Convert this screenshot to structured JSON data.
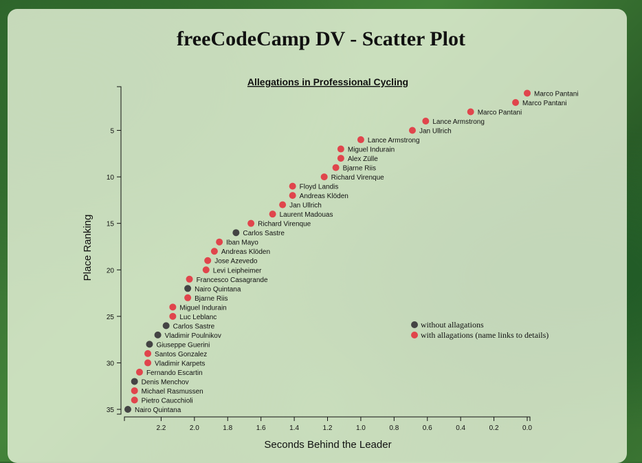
{
  "header": {
    "page_title": "freeCodeCamp DV - Scatter Plot"
  },
  "colors": {
    "doping": "#e0454c",
    "clean": "#444444"
  },
  "chart_data": {
    "type": "scatter",
    "title": "Allegations in Professional Cycling",
    "xlabel": "Seconds Behind the Leader",
    "ylabel": "Place Ranking",
    "xlim": [
      0,
      2.4
    ],
    "ylim": [
      1,
      35
    ],
    "x_ticks": [
      2.2,
      2.0,
      1.8,
      1.6,
      1.4,
      1.2,
      1.0,
      0.8,
      0.6,
      0.4,
      0.2,
      0.0
    ],
    "y_ticks": [
      5,
      10,
      15,
      20,
      25,
      30,
      35
    ],
    "x_reversed": true,
    "legend": [
      {
        "label": "without allagations",
        "allegation": false
      },
      {
        "label": "with allagations (name links to details)",
        "allegation": true
      }
    ],
    "points": [
      {
        "place": 1,
        "x": 0.0,
        "name": "Marco Pantani",
        "allegation": true
      },
      {
        "place": 2,
        "x": 0.07,
        "name": "Marco Pantani",
        "allegation": true
      },
      {
        "place": 3,
        "x": 0.34,
        "name": "Marco Pantani",
        "allegation": true
      },
      {
        "place": 4,
        "x": 0.61,
        "name": "Lance Armstrong",
        "allegation": true
      },
      {
        "place": 5,
        "x": 0.69,
        "name": "Jan Ullrich",
        "allegation": true
      },
      {
        "place": 6,
        "x": 1.0,
        "name": "Lance Armstrong",
        "allegation": true
      },
      {
        "place": 7,
        "x": 1.12,
        "name": "Miguel Indurain",
        "allegation": true
      },
      {
        "place": 8,
        "x": 1.12,
        "name": "Alex Zülle",
        "allegation": true
      },
      {
        "place": 9,
        "x": 1.15,
        "name": "Bjarne Riis",
        "allegation": true
      },
      {
        "place": 10,
        "x": 1.22,
        "name": "Richard Virenque",
        "allegation": true
      },
      {
        "place": 11,
        "x": 1.41,
        "name": "Floyd Landis",
        "allegation": true
      },
      {
        "place": 12,
        "x": 1.41,
        "name": "Andreas Klöden",
        "allegation": true
      },
      {
        "place": 13,
        "x": 1.47,
        "name": "Jan Ullrich",
        "allegation": true
      },
      {
        "place": 14,
        "x": 1.53,
        "name": "Laurent Madouas",
        "allegation": true
      },
      {
        "place": 15,
        "x": 1.66,
        "name": "Richard Virenque",
        "allegation": true
      },
      {
        "place": 16,
        "x": 1.75,
        "name": "Carlos Sastre",
        "allegation": false
      },
      {
        "place": 17,
        "x": 1.85,
        "name": "Iban Mayo",
        "allegation": true
      },
      {
        "place": 18,
        "x": 1.88,
        "name": "Andreas Klöden",
        "allegation": true
      },
      {
        "place": 19,
        "x": 1.92,
        "name": "Jose Azevedo",
        "allegation": true
      },
      {
        "place": 20,
        "x": 1.93,
        "name": "Levi Leipheimer",
        "allegation": true
      },
      {
        "place": 21,
        "x": 2.03,
        "name": "Francesco Casagrande",
        "allegation": true
      },
      {
        "place": 22,
        "x": 2.04,
        "name": "Nairo Quintana",
        "allegation": false
      },
      {
        "place": 23,
        "x": 2.04,
        "name": "Bjarne Riis",
        "allegation": true
      },
      {
        "place": 24,
        "x": 2.13,
        "name": "Miguel Indurain",
        "allegation": true
      },
      {
        "place": 25,
        "x": 2.13,
        "name": "Luc Leblanc",
        "allegation": true
      },
      {
        "place": 26,
        "x": 2.17,
        "name": "Carlos Sastre",
        "allegation": false
      },
      {
        "place": 27,
        "x": 2.22,
        "name": "Vladimir Poulnikov",
        "allegation": false
      },
      {
        "place": 28,
        "x": 2.27,
        "name": "Giuseppe Guerini",
        "allegation": false
      },
      {
        "place": 29,
        "x": 2.28,
        "name": "Santos Gonzalez",
        "allegation": true
      },
      {
        "place": 30,
        "x": 2.28,
        "name": "Vladimir Karpets",
        "allegation": true
      },
      {
        "place": 31,
        "x": 2.33,
        "name": "Fernando Escartin",
        "allegation": true
      },
      {
        "place": 32,
        "x": 2.36,
        "name": "Denis Menchov",
        "allegation": false
      },
      {
        "place": 33,
        "x": 2.36,
        "name": "Michael Rasmussen",
        "allegation": true
      },
      {
        "place": 34,
        "x": 2.36,
        "name": "Pietro Caucchioli",
        "allegation": true
      },
      {
        "place": 35,
        "x": 2.4,
        "name": "Nairo Quintana",
        "allegation": false
      }
    ]
  }
}
